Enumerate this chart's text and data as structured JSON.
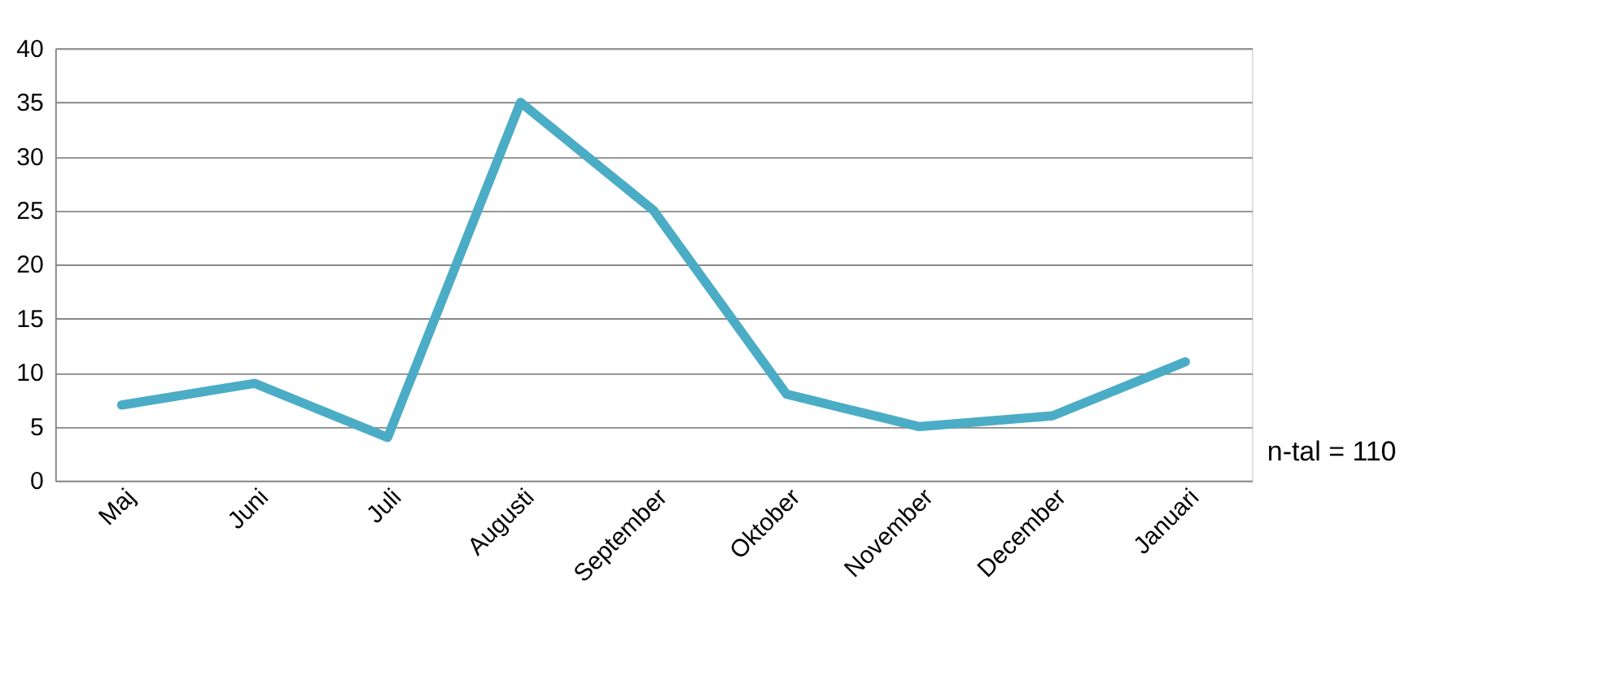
{
  "chart_data": {
    "type": "line",
    "categories": [
      "Maj",
      "Juni",
      "Juli",
      "Augusti",
      "September",
      "Oktober",
      "November",
      "December",
      "Januari"
    ],
    "series": [
      {
        "color": "#4bacc6",
        "values": [
          7,
          9,
          4,
          35,
          25,
          8,
          5,
          6,
          11
        ]
      }
    ],
    "ylim": [
      0,
      40
    ],
    "yticks": [
      0,
      5,
      10,
      15,
      20,
      25,
      30,
      35,
      40
    ],
    "grid": "y",
    "annotations": [
      "n-tal = 110"
    ]
  }
}
